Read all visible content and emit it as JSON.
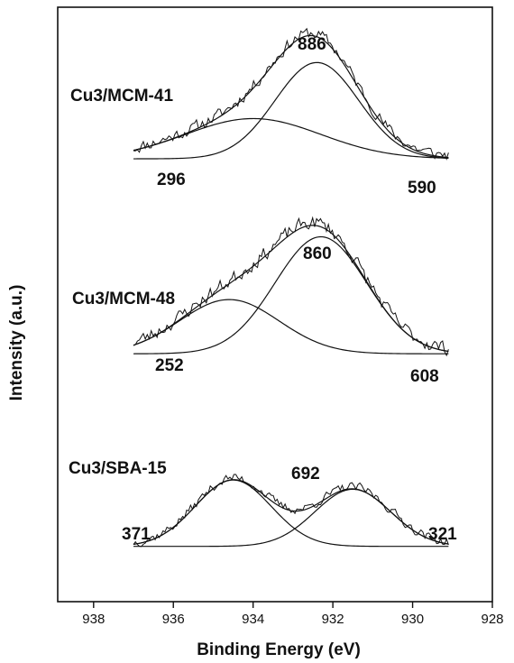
{
  "chart_data": {
    "type": "line",
    "xlabel": "Binding Energy (eV)",
    "ylabel": "Intensity (a.u.)",
    "xlim": [
      938.9,
      928.0
    ],
    "x_ticks": [
      938,
      936,
      934,
      932,
      930,
      928
    ],
    "x_reversed": true,
    "y_ticks_shown": false,
    "grid": false,
    "x_range_measured": [
      937,
      929.1
    ],
    "panels": [
      {
        "name": "Cu3/MCM-41",
        "baseline": 0.745,
        "scale": 0.205,
        "noise_seed": 11,
        "components": [
          {
            "label": "296",
            "center": 934.0,
            "sigma": 1.7,
            "height": 0.33
          },
          {
            "label": "590",
            "center": 932.4,
            "sigma": 1.05,
            "height": 0.79
          }
        ],
        "envelope_label": "886"
      },
      {
        "name": "Cu3/MCM-48",
        "baseline": 0.417,
        "scale": 0.24,
        "noise_seed": 23,
        "components": [
          {
            "label": "252",
            "center": 934.6,
            "sigma": 1.25,
            "height": 0.38
          },
          {
            "label": "608",
            "center": 932.3,
            "sigma": 1.15,
            "height": 0.82
          }
        ],
        "envelope_label": "860"
      },
      {
        "name": "Cu3/SBA-15",
        "baseline": 0.093,
        "scale": 0.155,
        "noise_seed": 37,
        "components": [
          {
            "label": "371",
            "center": 934.5,
            "sigma": 0.95,
            "height": 0.72
          },
          {
            "label": "321",
            "center": 931.5,
            "sigma": 0.95,
            "height": 0.62
          }
        ],
        "envelope_label": "692"
      }
    ]
  }
}
